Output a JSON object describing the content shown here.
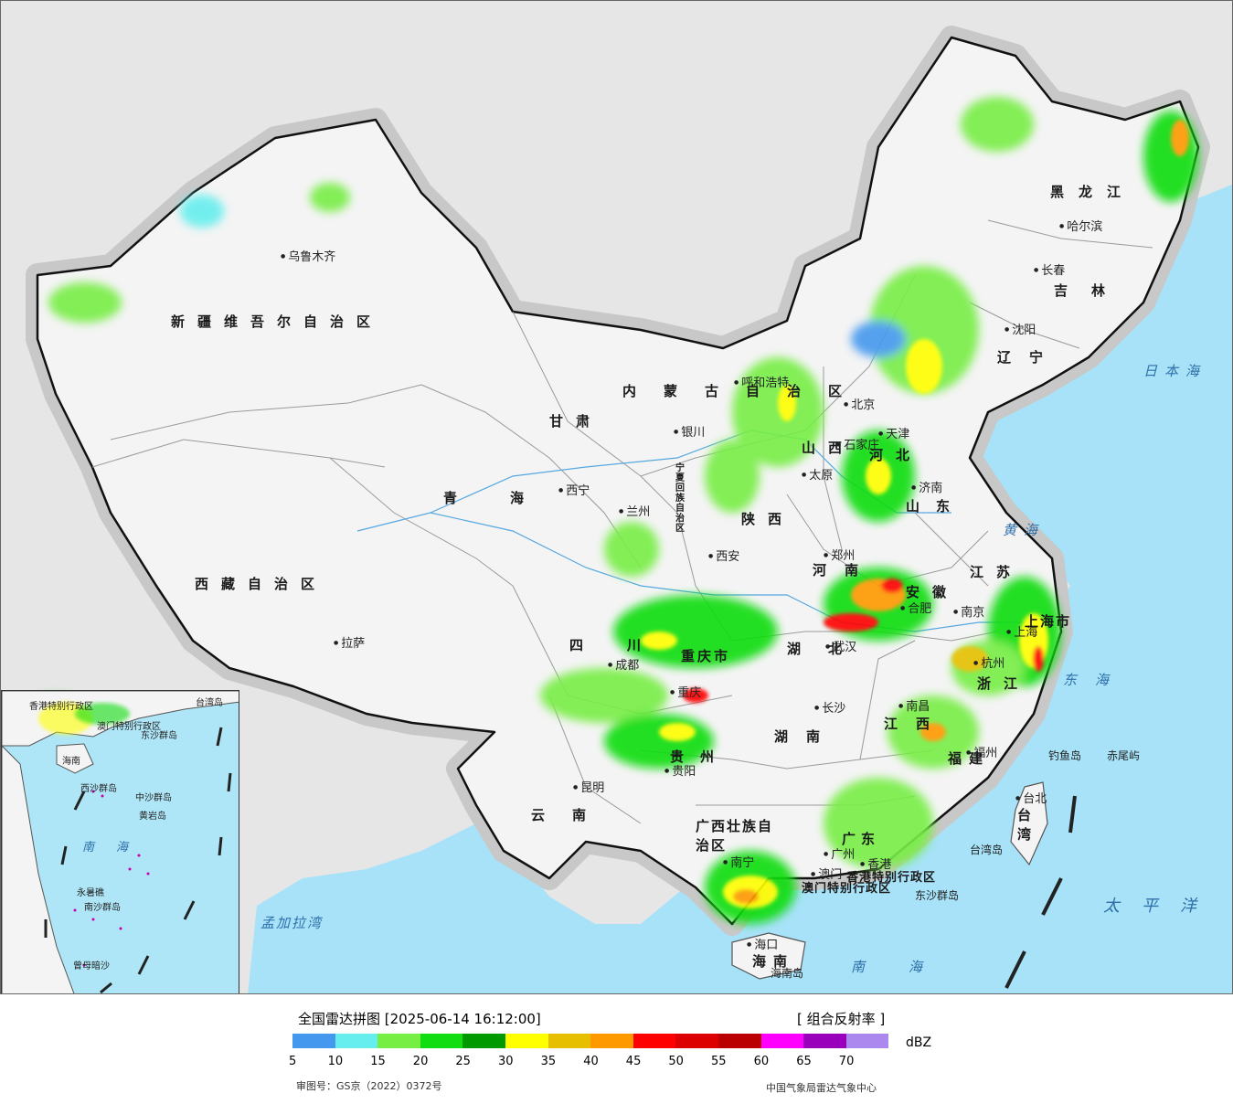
{
  "title": "全国雷达拼图 [2025-06-14 16:12:00]",
  "product": "[ 组合反射率 ]",
  "legend": {
    "unit": "dBZ",
    "bins": [
      {
        "value": 5,
        "color": "#4499ee"
      },
      {
        "value": 10,
        "color": "#66eeee"
      },
      {
        "value": 15,
        "color": "#77ee44"
      },
      {
        "value": 20,
        "color": "#11dd11"
      },
      {
        "value": 25,
        "color": "#009900"
      },
      {
        "value": 30,
        "color": "#ffff00"
      },
      {
        "value": 35,
        "color": "#e6c000"
      },
      {
        "value": 40,
        "color": "#ff9900"
      },
      {
        "value": 45,
        "color": "#ff0000"
      },
      {
        "value": 50,
        "color": "#dd0000"
      },
      {
        "value": 55,
        "color": "#bb0000"
      },
      {
        "value": 60,
        "color": "#ff00ff"
      },
      {
        "value": 65,
        "color": "#9900bb"
      },
      {
        "value": 70,
        "color": "#aa88ee"
      }
    ],
    "ticks": [
      "5",
      "10",
      "15",
      "20",
      "25",
      "30",
      "35",
      "40",
      "45",
      "50",
      "55",
      "60",
      "65",
      "70"
    ]
  },
  "review_number": "审图号：GS京（2022）0372号",
  "organization": "中国气象局雷达气象中心",
  "provinces": [
    "新疆维吾尔自治区",
    "西藏自治区",
    "青海",
    "甘肃",
    "内蒙古自治区",
    "黑龙江",
    "吉林",
    "辽宁",
    "河北",
    "山西",
    "陕西",
    "山东",
    "河南",
    "江苏",
    "安徽",
    "湖北",
    "四川",
    "重庆市",
    "贵州",
    "云南",
    "湖南",
    "江西",
    "浙江",
    "福建",
    "广东",
    "广西壮族自治区",
    "海南",
    "台湾",
    "上海市",
    "宁夏回族自治区",
    "香港特别行政区",
    "澳门特别行政区"
  ],
  "cities": [
    "乌鲁木齐",
    "拉萨",
    "西宁",
    "兰州",
    "银川",
    "呼和浩特",
    "北京",
    "天津",
    "石家庄",
    "太原",
    "济南",
    "西安",
    "郑州",
    "合肥",
    "南京",
    "上海",
    "杭州",
    "武汉",
    "成都",
    "重庆",
    "长沙",
    "南昌",
    "福州",
    "台北",
    "贵阳",
    "昆明",
    "南宁",
    "广州",
    "香港",
    "澳门",
    "海口",
    "哈尔滨",
    "长春",
    "沈阳"
  ],
  "seas": [
    "日本海",
    "黄海",
    "东海",
    "太平洋",
    "南海",
    "孟加拉湾"
  ],
  "islands": [
    "钓鱼岛",
    "赤尾屿",
    "台湾岛",
    "东沙群岛",
    "海南岛"
  ],
  "inset": {
    "labels": [
      "东沙群岛",
      "中沙群岛",
      "南海",
      "香港特别行政区",
      "澳门特别行政区",
      "台湾岛",
      "黄岩岛",
      "永暑礁",
      "南沙群岛",
      "曾母暗沙",
      "西沙群岛",
      "海南"
    ]
  }
}
